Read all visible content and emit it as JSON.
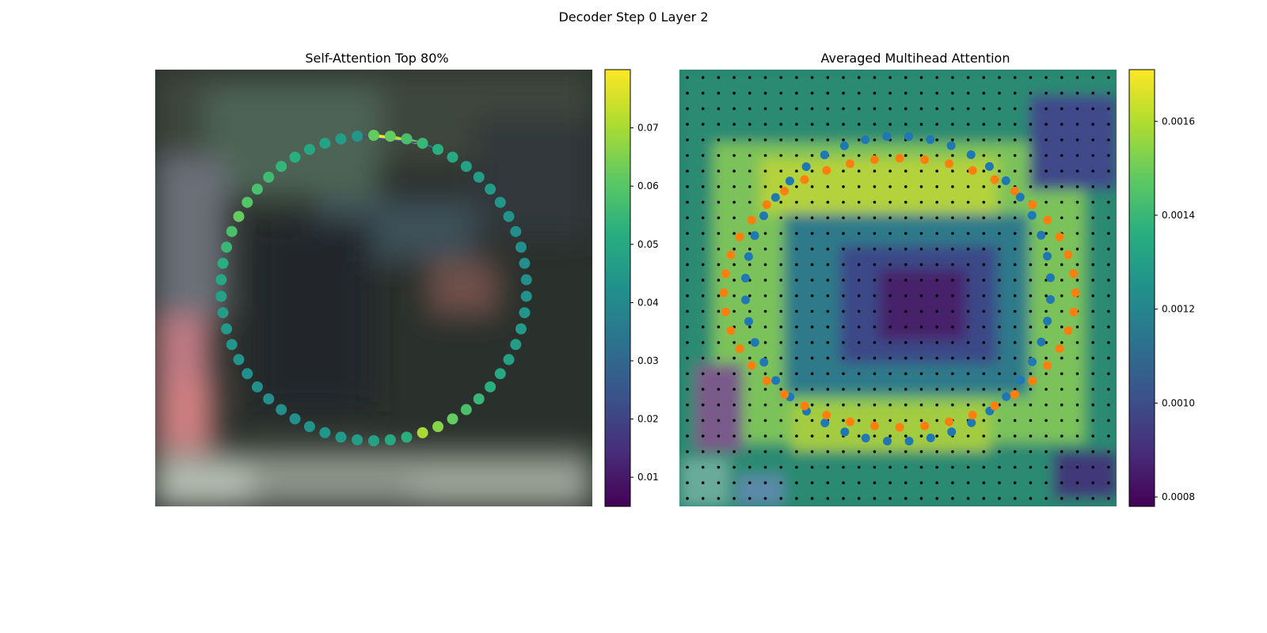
{
  "figure": {
    "suptitle": "Decoder Step 0 Layer 2"
  },
  "chart_data": [
    {
      "type": "scatter",
      "title": "Self-Attention Top 80%",
      "description_series": "58 points placed on a circle over a blurred photo background; color = attention weight (viridis). Lines connect the top-attended points.",
      "points_count": 58,
      "point_values": [
        0.062,
        0.062,
        0.058,
        0.055,
        0.052,
        0.05,
        0.048,
        0.046,
        0.045,
        0.044,
        0.043,
        0.042,
        0.042,
        0.042,
        0.042,
        0.043,
        0.044,
        0.045,
        0.046,
        0.048,
        0.05,
        0.052,
        0.055,
        0.058,
        0.062,
        0.066,
        0.07,
        0.052,
        0.05,
        0.048,
        0.046,
        0.045,
        0.044,
        0.043,
        0.042,
        0.042,
        0.042,
        0.042,
        0.042,
        0.043,
        0.044,
        0.045,
        0.046,
        0.048,
        0.05,
        0.052,
        0.055,
        0.058,
        0.062,
        0.06,
        0.058,
        0.056,
        0.054,
        0.052,
        0.05,
        0.048,
        0.046,
        0.044
      ],
      "colorbar": {
        "colormap": "viridis",
        "range": [
          0.005,
          0.08
        ],
        "ticks": [
          "0.01",
          "0.02",
          "0.03",
          "0.04",
          "0.05",
          "0.06",
          "0.07"
        ]
      }
    },
    {
      "type": "heatmap",
      "title": "Averaged Multihead Attention",
      "grid": "28x28 black reference dots",
      "series": [
        {
          "name": "",
          "color": "#1f77b4",
          "kind": "points"
        },
        {
          "name": "",
          "color": "#ff7f0e",
          "kind": "points"
        }
      ],
      "colorbar": {
        "colormap": "viridis",
        "range": [
          0.00078,
          0.00171
        ],
        "ticks": [
          "0.0008",
          "0.0010",
          "0.0012",
          "0.0014",
          "0.0016"
        ]
      }
    }
  ]
}
